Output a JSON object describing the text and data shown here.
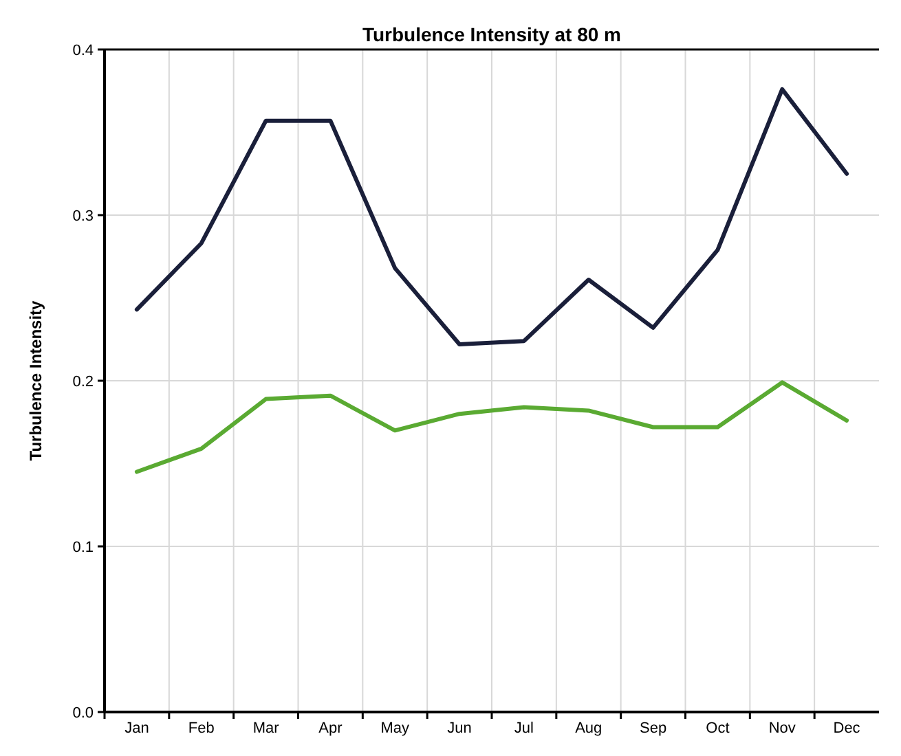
{
  "chart_data": {
    "type": "line",
    "title": "Turbulence Intensity at 80 m",
    "ylabel": "Turbulence Intensity",
    "categories": [
      "Jan",
      "Feb",
      "Mar",
      "Apr",
      "May",
      "Jun",
      "Jul",
      "Aug",
      "Sep",
      "Oct",
      "Nov",
      "Dec"
    ],
    "series": [
      {
        "color": "#1a1f3a",
        "values": [
          0.243,
          0.283,
          0.357,
          0.357,
          0.268,
          0.222,
          0.224,
          0.261,
          0.232,
          0.279,
          0.376,
          0.325
        ]
      },
      {
        "color": "#5aaa32",
        "values": [
          0.145,
          0.159,
          0.189,
          0.191,
          0.17,
          0.18,
          0.184,
          0.182,
          0.172,
          0.172,
          0.199,
          0.176
        ]
      }
    ],
    "ylim": [
      0,
      0.4
    ],
    "yticks": [
      {
        "value": 0,
        "label": "0.0"
      },
      {
        "value": 0.1,
        "label": "0.1"
      },
      {
        "value": 0.2,
        "label": "0.2"
      },
      {
        "value": 0.3,
        "label": "0.3"
      },
      {
        "value": 0.4,
        "label": "0.4"
      }
    ],
    "grid": true,
    "marker": "none",
    "line_style": "solid"
  }
}
